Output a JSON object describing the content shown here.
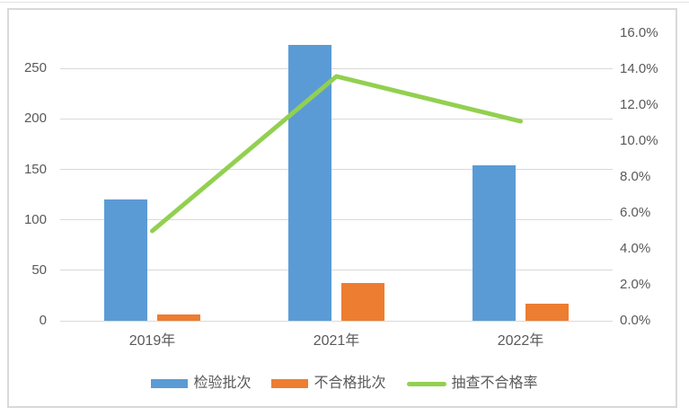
{
  "colors": {
    "background": "#ffffff",
    "frame_border": "#d9d9d9",
    "gridline": "#d9d9d9",
    "axis_text": "#595959",
    "bar_series_1": "#5b9bd5",
    "bar_series_2": "#ed7d31",
    "line_series": "#92d050"
  },
  "chart_data": {
    "type": "bar+line",
    "title": "",
    "xlabel": "",
    "ylabel": "",
    "grid": true,
    "categories": [
      "2019年",
      "2021年",
      "2022年"
    ],
    "series": [
      {
        "name": "检验批次",
        "type": "bar",
        "axis": "left",
        "color": "#5b9bd5",
        "values": [
          120,
          273,
          154
        ]
      },
      {
        "name": "不合格批次",
        "type": "bar",
        "axis": "left",
        "color": "#ed7d31",
        "values": [
          6,
          37,
          17
        ]
      },
      {
        "name": "抽查不合格率",
        "type": "line",
        "axis": "right",
        "color": "#92d050",
        "values_percent": [
          5.0,
          13.6,
          11.1
        ]
      }
    ],
    "left_axis": {
      "min": 0,
      "max": 285,
      "tick_values": [
        0,
        50,
        100,
        150,
        200,
        250
      ],
      "tick_labels": [
        "0",
        "50",
        "100",
        "150",
        "200",
        "250"
      ]
    },
    "right_axis": {
      "min": 0,
      "max": 16,
      "tick_values": [
        0,
        2,
        4,
        6,
        8,
        10,
        12,
        14,
        16
      ],
      "tick_labels": [
        "0.0%",
        "2.0%",
        "4.0%",
        "6.0%",
        "8.0%",
        "10.0%",
        "12.0%",
        "14.0%",
        "16.0%"
      ]
    },
    "legend": {
      "position": "bottom",
      "entries": [
        {
          "label": "检验批次",
          "swatch": "bar",
          "color": "#5b9bd5"
        },
        {
          "label": "不合格批次",
          "swatch": "bar",
          "color": "#ed7d31"
        },
        {
          "label": "抽查不合格率",
          "swatch": "line",
          "color": "#92d050"
        }
      ]
    }
  }
}
